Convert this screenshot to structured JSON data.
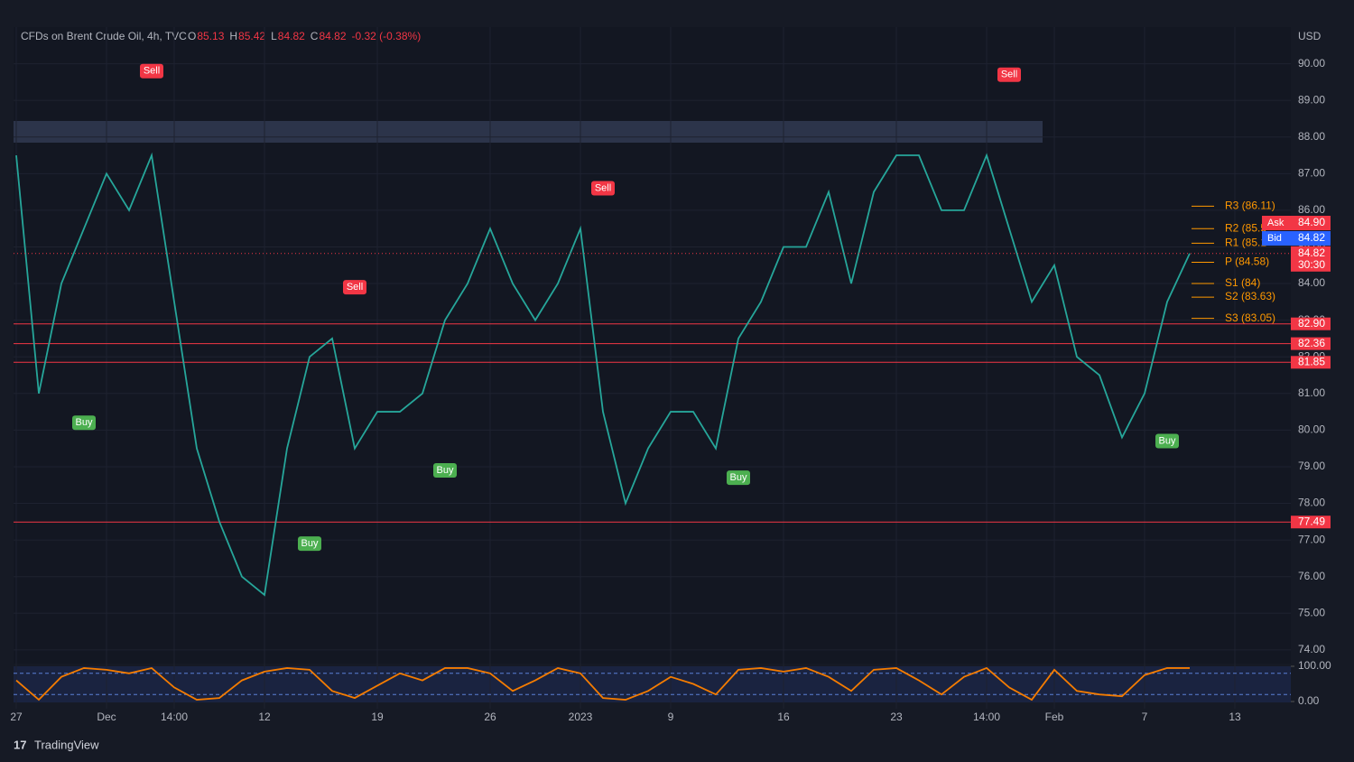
{
  "chart_data": [
    {
      "type": "line",
      "title": "CFDs on Brent Crude Oil, 4h, TVC",
      "ohlc": [
        {
          "key": "O",
          "value": 85.13
        },
        {
          "key": "H",
          "value": 85.42
        },
        {
          "key": "L",
          "value": 84.82
        },
        {
          "key": "C",
          "value": 84.82
        }
      ],
      "change": "-0.32 (-0.38%)",
      "y_axis_label": "USD",
      "brand": "TradingView",
      "color": "#26a69a",
      "categories": [
        "27",
        null,
        null,
        null,
        "Dec",
        null,
        null,
        "14:00",
        null,
        null,
        null,
        "12",
        null,
        null,
        null,
        null,
        "19",
        null,
        null,
        null,
        null,
        "26",
        null,
        null,
        null,
        "2023",
        null,
        null,
        null,
        "9",
        null,
        null,
        null,
        null,
        "16",
        null,
        null,
        null,
        null,
        "23",
        null,
        null,
        null,
        "14:00",
        null,
        null,
        "Feb",
        null,
        null,
        null,
        "7",
        null,
        null,
        null,
        "13",
        null,
        null
      ],
      "values": [
        87.5,
        81.0,
        84.0,
        85.5,
        87.0,
        86.0,
        87.5,
        83.5,
        79.5,
        77.5,
        76.0,
        75.5,
        79.5,
        82.0,
        82.5,
        79.5,
        80.5,
        80.5,
        81.0,
        83.0,
        84.0,
        85.5,
        84.0,
        83.0,
        84.0,
        85.5,
        80.5,
        78.0,
        79.5,
        80.5,
        80.5,
        79.5,
        82.5,
        83.5,
        85.0,
        85.0,
        86.5,
        84.0,
        86.5,
        87.5,
        87.5,
        86.0,
        86.0,
        87.5,
        85.5,
        83.5,
        84.5,
        82.0,
        81.5,
        79.8,
        81.0,
        83.5,
        84.82,
        null,
        null,
        null,
        null
      ],
      "ylim": [
        73.75,
        91
      ],
      "yticks": [
        {
          "value": 74,
          "label": "74.00"
        },
        {
          "value": 75,
          "label": "75.00"
        },
        {
          "value": 76,
          "label": "76.00"
        },
        {
          "value": 77,
          "label": "77.00"
        },
        {
          "value": 78,
          "label": "78.00"
        },
        {
          "value": 79,
          "label": "79.00"
        },
        {
          "value": 80,
          "label": "80.00"
        },
        {
          "value": 81,
          "label": "81.00"
        },
        {
          "value": 82,
          "label": "82.00"
        },
        {
          "value": 83,
          "label": "83.00"
        },
        {
          "value": 84,
          "label": "84.00"
        },
        {
          "value": 85,
          "label": "85.00"
        },
        {
          "value": 86,
          "label": "86.00"
        },
        {
          "value": 87,
          "label": "87.00"
        },
        {
          "value": 88,
          "label": "88.00"
        },
        {
          "value": 89,
          "label": "89.00"
        },
        {
          "value": 90,
          "label": "90.00"
        }
      ],
      "levels": [
        {
          "value": 82.9,
          "label": "82.90"
        },
        {
          "value": 82.36,
          "label": "82.36"
        },
        {
          "value": 81.85,
          "label": "81.85"
        },
        {
          "value": 77.49,
          "label": "77.49"
        }
      ],
      "level_color": "#f23645",
      "price": {
        "value": 84.82,
        "countdown": "30:30"
      },
      "quotes": [
        {
          "name": "Ask",
          "value": 84.9,
          "label": "84.90",
          "color": "#f23645"
        },
        {
          "name": "Bid",
          "value": 84.82,
          "label": "84.82",
          "color": "#2962ff"
        }
      ],
      "pivots": [
        {
          "label": "R3 (86.11)",
          "value": 86.11
        },
        {
          "label": "R2 (85.5",
          "value": 85.5
        },
        {
          "label": "R1 (85.1",
          "value": 85.1
        },
        {
          "label": "P (84.58)",
          "value": 84.58
        },
        {
          "label": "S1 (84)",
          "value": 84
        },
        {
          "label": "S2 (83.63)",
          "value": 83.63
        },
        {
          "label": "S3 (83.05)",
          "value": 83.05
        }
      ],
      "pivot_color": "#ff9800",
      "annotations": [
        {
          "text": "Sell",
          "x": 6,
          "y": 89.8
        },
        {
          "text": "Sell",
          "x": 15,
          "y": 83.9
        },
        {
          "text": "Sell",
          "x": 26,
          "y": 86.6
        },
        {
          "text": "Sell",
          "x": 44,
          "y": 89.7
        },
        {
          "text": "Buy",
          "x": 3,
          "y": 80.2
        },
        {
          "text": "Buy",
          "x": 13,
          "y": 76.9
        },
        {
          "text": "Buy",
          "x": 19,
          "y": 78.9
        },
        {
          "text": "Buy",
          "x": 32,
          "y": 78.7
        },
        {
          "text": "Buy",
          "x": 51,
          "y": 79.7
        }
      ]
    },
    {
      "type": "line",
      "color": "#f57c00",
      "values": [
        60,
        5,
        70,
        95,
        90,
        80,
        95,
        40,
        5,
        10,
        60,
        85,
        95,
        90,
        30,
        10,
        45,
        80,
        60,
        95,
        95,
        80,
        30,
        60,
        95,
        80,
        10,
        5,
        30,
        70,
        50,
        20,
        90,
        95,
        85,
        95,
        70,
        30,
        90,
        95,
        60,
        20,
        70,
        95,
        40,
        5,
        90,
        30,
        20,
        15,
        75,
        95,
        95,
        null,
        null,
        null,
        null
      ],
      "ylim": [
        0,
        100
      ],
      "yticks": [
        {
          "value": 0,
          "label": "0.00"
        },
        {
          "value": 100,
          "label": "100.00"
        }
      ]
    }
  ]
}
